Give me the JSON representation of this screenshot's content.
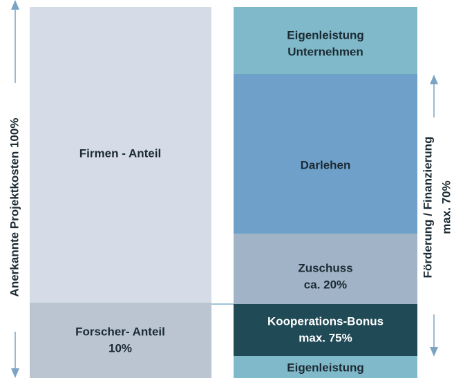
{
  "left_column": {
    "blocks": [
      {
        "lines": [
          "Firmen - Anteil"
        ]
      },
      {
        "lines": [
          "Forscher- Anteil",
          "10%"
        ]
      }
    ]
  },
  "right_column": {
    "blocks": [
      {
        "lines": [
          "Eigenleistung",
          "Unternehmen"
        ]
      },
      {
        "lines": [
          "Darlehen"
        ]
      },
      {
        "lines": [
          "Zuschuss",
          "ca. 20%"
        ]
      },
      {
        "lines": [
          "Kooperations-Bonus",
          "max. 75%"
        ]
      },
      {
        "lines": [
          "Eigenleistung"
        ]
      }
    ]
  },
  "left_axis": {
    "label": "Anerkannte Projektkosten 100%"
  },
  "right_axis": {
    "lines": [
      "Förderung / Finanzierung",
      "max. 70%"
    ]
  }
}
